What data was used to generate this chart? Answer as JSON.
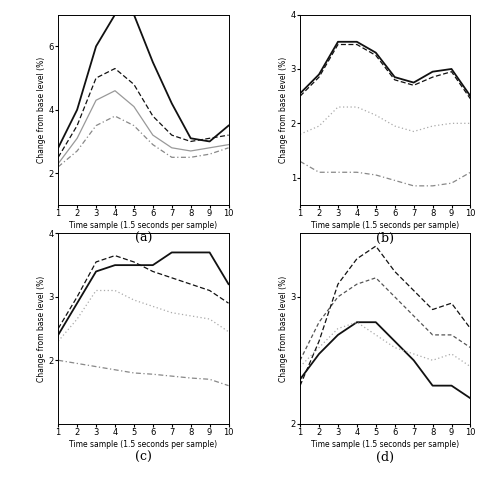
{
  "x": [
    1,
    2,
    3,
    4,
    5,
    6,
    7,
    8,
    9,
    10
  ],
  "subplot_a": {
    "line1": [
      2.8,
      4.0,
      6.0,
      7.0,
      7.0,
      5.5,
      4.2,
      3.1,
      3.0,
      3.5
    ],
    "line2": [
      2.5,
      3.5,
      5.0,
      5.3,
      4.8,
      3.8,
      3.2,
      3.0,
      3.1,
      3.2
    ],
    "line3": [
      2.3,
      3.1,
      4.3,
      4.6,
      4.1,
      3.2,
      2.8,
      2.7,
      2.8,
      2.9
    ],
    "line4": [
      2.2,
      2.7,
      3.5,
      3.8,
      3.5,
      2.9,
      2.5,
      2.5,
      2.6,
      2.8
    ],
    "styles": [
      "solid_black",
      "dashed_black",
      "solid_gray",
      "dashdot_gray"
    ],
    "ylim": [
      1,
      7
    ],
    "yticks": [
      2,
      4,
      6
    ],
    "label": "(a)"
  },
  "subplot_b": {
    "line1": [
      2.55,
      2.9,
      3.5,
      3.5,
      3.3,
      2.85,
      2.75,
      2.95,
      3.0,
      2.5
    ],
    "line2": [
      2.5,
      2.85,
      3.45,
      3.45,
      3.25,
      2.8,
      2.7,
      2.85,
      2.95,
      2.45
    ],
    "line3": [
      1.8,
      1.95,
      2.3,
      2.3,
      2.15,
      1.95,
      1.85,
      1.95,
      2.0,
      2.0
    ],
    "line4": [
      1.3,
      1.1,
      1.1,
      1.1,
      1.05,
      0.95,
      0.85,
      0.85,
      0.9,
      1.1
    ],
    "styles": [
      "solid_black",
      "dashed_black",
      "dotted_gray",
      "dashdot_gray"
    ],
    "ylim": [
      0.5,
      4
    ],
    "yticks": [
      1,
      2,
      3,
      4
    ],
    "label": "(b)"
  },
  "subplot_c": {
    "line1": [
      2.4,
      2.9,
      3.4,
      3.5,
      3.5,
      3.5,
      3.7,
      3.7,
      3.7,
      3.2
    ],
    "line2": [
      2.5,
      3.0,
      3.55,
      3.65,
      3.55,
      3.4,
      3.3,
      3.2,
      3.1,
      2.9
    ],
    "line3": [
      2.3,
      2.65,
      3.1,
      3.1,
      2.95,
      2.85,
      2.75,
      2.7,
      2.65,
      2.45
    ],
    "line4": [
      2.0,
      1.95,
      1.9,
      1.85,
      1.8,
      1.78,
      1.75,
      1.72,
      1.7,
      1.6
    ],
    "styles": [
      "solid_black",
      "dashed_black",
      "dotted_gray",
      "dashdot_gray"
    ],
    "ylim": [
      1,
      4
    ],
    "yticks": [
      2,
      3,
      4
    ],
    "label": "(c)"
  },
  "subplot_d": {
    "line1": [
      2.35,
      2.55,
      2.7,
      2.8,
      2.8,
      2.65,
      2.5,
      2.3,
      2.3,
      2.2
    ],
    "line2": [
      2.45,
      2.6,
      2.75,
      2.8,
      2.7,
      2.6,
      2.55,
      2.5,
      2.55,
      2.45
    ],
    "line3": [
      2.5,
      2.8,
      3.0,
      3.1,
      3.15,
      3.0,
      2.85,
      2.7,
      2.7,
      2.6
    ],
    "line4": [
      2.3,
      2.65,
      3.1,
      3.3,
      3.4,
      3.2,
      3.05,
      2.9,
      2.95,
      2.75
    ],
    "styles": [
      "solid_black",
      "dotted_gray",
      "dashed_black2",
      "dashed_black"
    ],
    "ylim": [
      2.0,
      3.5
    ],
    "yticks": [
      2,
      3
    ],
    "label": "(d)"
  },
  "xlabel": "Time sample (1.5 seconds per sample)",
  "ylabel": "Change from base level (%)"
}
